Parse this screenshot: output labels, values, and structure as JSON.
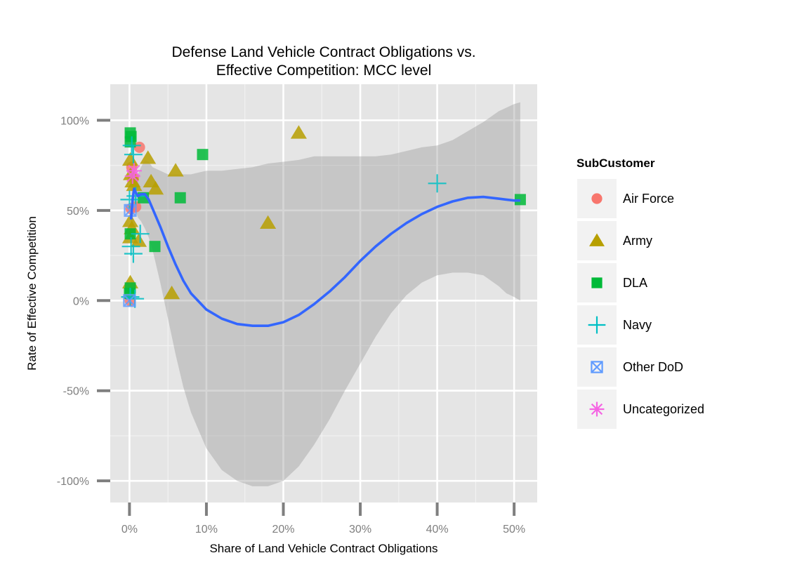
{
  "chart_data": {
    "type": "scatter",
    "title_lines": [
      "Defense Land Vehicle Contract Obligations vs.",
      "Effective Competition: MCC level"
    ],
    "xlabel": "Share of Land Vehicle Contract Obligations",
    "ylabel": "Rate of Effective Competition",
    "xlim": [
      -0.025,
      0.53
    ],
    "ylim": [
      -1.12,
      1.2
    ],
    "x_ticks": [
      0,
      0.1,
      0.2,
      0.3,
      0.4,
      0.5
    ],
    "x_tick_labels": [
      "0%",
      "10%",
      "20%",
      "30%",
      "40%",
      "50%"
    ],
    "y_ticks": [
      1,
      0.5,
      0,
      -0.5,
      -1
    ],
    "y_tick_labels": [
      "100%",
      "50%",
      "0%",
      "-50%",
      "-100%"
    ],
    "grid": true,
    "legend": {
      "title": "SubCustomer",
      "position": "right",
      "items": [
        {
          "label": "Air Force",
          "shape": "circle",
          "color": "#F8766D"
        },
        {
          "label": "Army",
          "shape": "triangle",
          "color": "#B79F00"
        },
        {
          "label": "DLA",
          "shape": "square",
          "color": "#00BA38"
        },
        {
          "label": "Navy",
          "shape": "plus",
          "color": "#00BFC4"
        },
        {
          "label": "Other DoD",
          "shape": "square-cross",
          "color": "#619CFF"
        },
        {
          "label": "Uncategorized",
          "shape": "asterisk",
          "color": "#F564E3"
        }
      ]
    },
    "series": [
      {
        "name": "Air Force",
        "points": [
          [
            0.013,
            0.85
          ],
          [
            0.003,
            0.74
          ],
          [
            0.005,
            0.68
          ],
          [
            0.008,
            0.52
          ],
          [
            0.002,
            0.51
          ],
          [
            0.001,
            0.0
          ]
        ]
      },
      {
        "name": "Army",
        "points": [
          [
            0.001,
            0.78
          ],
          [
            0.002,
            0.7
          ],
          [
            0.004,
            0.66
          ],
          [
            0.006,
            0.64
          ],
          [
            0.024,
            0.79
          ],
          [
            0.028,
            0.66
          ],
          [
            0.034,
            0.62
          ],
          [
            0.06,
            0.72
          ],
          [
            0.22,
            0.93
          ],
          [
            0.18,
            0.43
          ],
          [
            0.055,
            0.04
          ],
          [
            0.001,
            0.44
          ],
          [
            0.003,
            0.4
          ],
          [
            0.001,
            0.35
          ],
          [
            0.012,
            0.33
          ],
          [
            0.001,
            0.1
          ]
        ]
      },
      {
        "name": "DLA",
        "points": [
          [
            0.001,
            0.93
          ],
          [
            0.002,
            0.91
          ],
          [
            0.001,
            0.88
          ],
          [
            0.095,
            0.81
          ],
          [
            0.066,
            0.57
          ],
          [
            0.018,
            0.57
          ],
          [
            0.033,
            0.3
          ],
          [
            0.508,
            0.56
          ],
          [
            0.001,
            0.07
          ],
          [
            0.0,
            0.04
          ],
          [
            0.001,
            0.37
          ]
        ]
      },
      {
        "name": "Navy",
        "points": [
          [
            0.003,
            0.86
          ],
          [
            0.005,
            0.81
          ],
          [
            0.0,
            0.56
          ],
          [
            0.008,
            0.58
          ],
          [
            0.014,
            0.37
          ],
          [
            0.002,
            0.3
          ],
          [
            0.005,
            0.26
          ],
          [
            0.4,
            0.65
          ],
          [
            0.001,
            0.02
          ],
          [
            0.007,
            0.01
          ]
        ]
      },
      {
        "name": "Other DoD",
        "points": [
          [
            0.0,
            0.0
          ],
          [
            0.001,
            0.5
          ]
        ]
      },
      {
        "name": "Uncategorized",
        "points": [
          [
            0.006,
            0.72
          ],
          [
            0.004,
            0.69
          ]
        ]
      }
    ],
    "smooth": {
      "method": "loess",
      "line_color": "#3366FF",
      "x": [
        0.002,
        0.004,
        0.006,
        0.008,
        0.011,
        0.015,
        0.02,
        0.025,
        0.03,
        0.04,
        0.05,
        0.06,
        0.07,
        0.08,
        0.1,
        0.12,
        0.14,
        0.16,
        0.18,
        0.2,
        0.22,
        0.24,
        0.26,
        0.28,
        0.3,
        0.32,
        0.34,
        0.36,
        0.38,
        0.4,
        0.42,
        0.44,
        0.46,
        0.48,
        0.49,
        0.5,
        0.508
      ],
      "y": [
        0.45,
        0.56,
        0.62,
        0.6,
        0.58,
        0.59,
        0.59,
        0.56,
        0.51,
        0.41,
        0.3,
        0.2,
        0.11,
        0.04,
        -0.05,
        -0.1,
        -0.13,
        -0.14,
        -0.14,
        -0.12,
        -0.08,
        -0.02,
        0.05,
        0.13,
        0.22,
        0.3,
        0.37,
        0.43,
        0.48,
        0.52,
        0.55,
        0.57,
        0.575,
        0.565,
        0.56,
        0.555,
        0.555
      ],
      "lower": [
        0.37,
        0.44,
        0.5,
        0.5,
        0.46,
        0.44,
        0.4,
        0.35,
        0.28,
        0.1,
        -0.1,
        -0.3,
        -0.48,
        -0.62,
        -0.82,
        -0.94,
        -1.0,
        -1.03,
        -1.03,
        -1.0,
        -0.92,
        -0.8,
        -0.66,
        -0.5,
        -0.35,
        -0.2,
        -0.07,
        0.03,
        0.1,
        0.14,
        0.155,
        0.155,
        0.14,
        0.08,
        0.04,
        0.02,
        0.0
      ],
      "upper": [
        0.53,
        0.68,
        0.74,
        0.7,
        0.7,
        0.74,
        0.78,
        0.77,
        0.74,
        0.72,
        0.7,
        0.7,
        0.7,
        0.7,
        0.72,
        0.72,
        0.73,
        0.74,
        0.76,
        0.77,
        0.78,
        0.8,
        0.8,
        0.8,
        0.8,
        0.8,
        0.81,
        0.83,
        0.85,
        0.86,
        0.89,
        0.94,
        0.99,
        1.05,
        1.07,
        1.09,
        1.1
      ]
    }
  }
}
